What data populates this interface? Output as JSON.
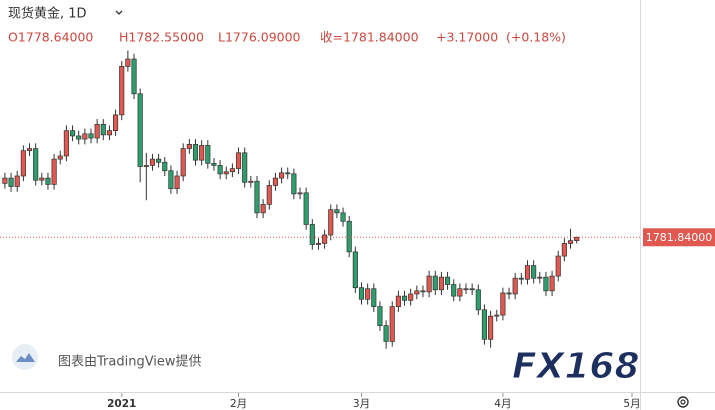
{
  "chart_data": {
    "type": "candlestick",
    "title": "现货黄金, 1D",
    "legend": {
      "open": "O1778.64000",
      "high": "H1782.55000",
      "low": "L1776.09000",
      "close": "收=1781.84000",
      "change": "+3.17000",
      "change_pct": "(+0.18%)"
    },
    "last_price": {
      "value": 1781.84,
      "label": "1781.84000"
    },
    "watermark": "图表由TradingView提供",
    "logo": "FX168",
    "up_color": "#e0584f",
    "down_color": "#2f9e6d",
    "xlim": [
      -0.8,
      115.5
    ],
    "xticks": [
      {
        "value": 19,
        "label": "2021"
      },
      {
        "value": 38,
        "label": "2月"
      },
      {
        "value": 58,
        "label": "3月"
      },
      {
        "value": 81,
        "label": "4月"
      },
      {
        "value": 102,
        "label": "5月"
      }
    ],
    "ylim": [
      1635,
      2007
    ],
    "grid": false,
    "open": [
      1833,
      1838,
      1830,
      1840,
      1864,
      1866,
      1836,
      1838,
      1832,
      1856,
      1859,
      1883,
      1878,
      1875,
      1880,
      1876,
      1889,
      1879,
      1883,
      1898,
      1944,
      1951,
      1918,
      1849,
      1850,
      1856,
      1853,
      1845,
      1828,
      1840,
      1866,
      1870,
      1855,
      1869,
      1852,
      1850,
      1842,
      1844,
      1847,
      1862,
      1834,
      1835,
      1805,
      1813,
      1831,
      1838,
      1843,
      1842,
      1823,
      1824,
      1794,
      1775,
      1776,
      1784,
      1808,
      1805,
      1797,
      1768,
      1734,
      1723,
      1733,
      1716,
      1698,
      1683,
      1716,
      1726,
      1722,
      1728,
      1731,
      1730,
      1745,
      1732,
      1744,
      1737,
      1726,
      1733,
      1733,
      1732,
      1713,
      1685,
      1707,
      1708,
      1729,
      1728,
      1743,
      1742,
      1755,
      1743,
      1744,
      1731,
      1745,
      1764,
      1776,
      1778.64
    ],
    "high": [
      1843,
      1843,
      1845,
      1869,
      1871,
      1871,
      1843,
      1843,
      1861,
      1864,
      1888,
      1888,
      1883,
      1885,
      1885,
      1894,
      1894,
      1888,
      1903,
      1949,
      1959,
      1956,
      1923,
      1862,
      1861,
      1861,
      1858,
      1850,
      1845,
      1871,
      1875,
      1875,
      1874,
      1874,
      1857,
      1855,
      1849,
      1852,
      1867,
      1867,
      1840,
      1840,
      1818,
      1836,
      1843,
      1848,
      1848,
      1847,
      1829,
      1829,
      1799,
      1781,
      1789,
      1813,
      1813,
      1810,
      1802,
      1773,
      1739,
      1738,
      1738,
      1721,
      1703,
      1721,
      1731,
      1731,
      1733,
      1736,
      1736,
      1750,
      1750,
      1749,
      1749,
      1742,
      1738,
      1738,
      1738,
      1737,
      1718,
      1712,
      1713,
      1734,
      1734,
      1748,
      1748,
      1760,
      1760,
      1749,
      1749,
      1750,
      1769,
      1781,
      1790,
      1782.55
    ],
    "low": [
      1828,
      1825,
      1825,
      1835,
      1859,
      1831,
      1831,
      1827,
      1827,
      1851,
      1854,
      1873,
      1870,
      1870,
      1871,
      1871,
      1874,
      1874,
      1878,
      1893,
      1939,
      1913,
      1834,
      1817,
      1845,
      1848,
      1840,
      1823,
      1823,
      1835,
      1861,
      1850,
      1850,
      1847,
      1845,
      1837,
      1837,
      1839,
      1842,
      1829,
      1829,
      1800,
      1800,
      1808,
      1826,
      1833,
      1837,
      1818,
      1818,
      1789,
      1770,
      1770,
      1771,
      1779,
      1800,
      1792,
      1763,
      1729,
      1718,
      1718,
      1711,
      1693,
      1676,
      1678,
      1711,
      1717,
      1717,
      1723,
      1725,
      1725,
      1727,
      1727,
      1732,
      1721,
      1721,
      1728,
      1727,
      1708,
      1680,
      1677,
      1702,
      1703,
      1723,
      1723,
      1737,
      1737,
      1738,
      1738,
      1726,
      1726,
      1740,
      1759,
      1771,
      1776.09
    ],
    "close": [
      1838,
      1830,
      1840,
      1864,
      1866,
      1836,
      1838,
      1832,
      1856,
      1859,
      1883,
      1878,
      1875,
      1880,
      1876,
      1889,
      1879,
      1883,
      1898,
      1944,
      1951,
      1918,
      1849,
      1850,
      1856,
      1853,
      1845,
      1828,
      1840,
      1866,
      1870,
      1855,
      1869,
      1852,
      1850,
      1842,
      1844,
      1847,
      1862,
      1834,
      1835,
      1805,
      1813,
      1831,
      1838,
      1843,
      1842,
      1823,
      1824,
      1794,
      1775,
      1776,
      1784,
      1808,
      1805,
      1797,
      1768,
      1734,
      1723,
      1733,
      1716,
      1698,
      1683,
      1716,
      1726,
      1722,
      1728,
      1731,
      1730,
      1745,
      1732,
      1744,
      1737,
      1726,
      1733,
      1733,
      1732,
      1713,
      1685,
      1707,
      1708,
      1729,
      1728,
      1743,
      1742,
      1755,
      1743,
      1744,
      1731,
      1745,
      1764,
      1776,
      1778.64,
      1781.84
    ]
  }
}
